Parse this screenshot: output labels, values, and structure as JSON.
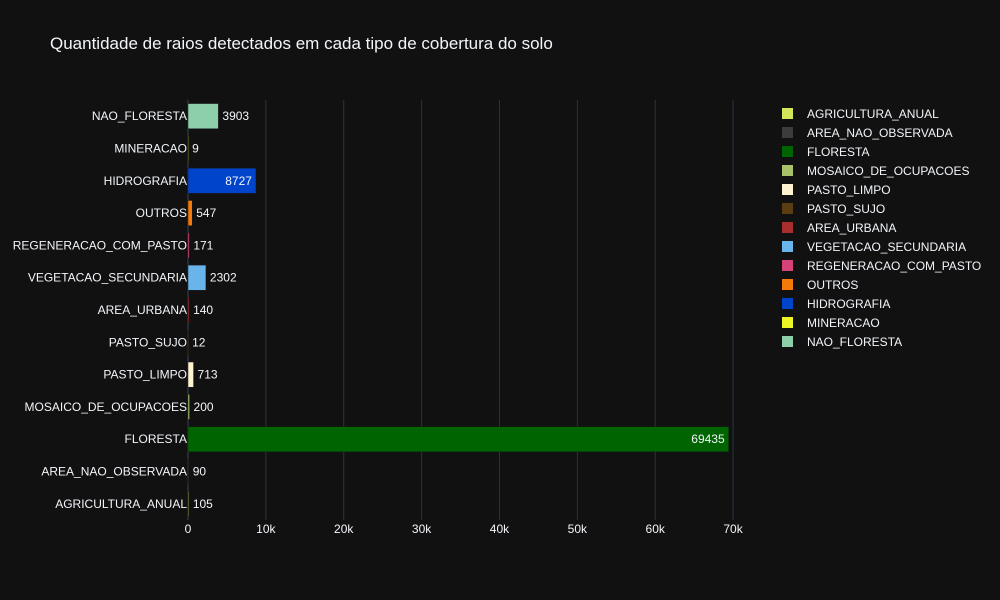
{
  "chart_data": {
    "type": "bar",
    "orientation": "horizontal",
    "title": "Quantidade de raios detectados em cada tipo de cobertura do solo",
    "xlabel": "",
    "ylabel": "",
    "xlim": [
      0,
      75000
    ],
    "x_ticks": [
      0,
      10000,
      20000,
      30000,
      40000,
      50000,
      60000,
      70000
    ],
    "x_tick_labels": [
      "0",
      "10k",
      "20k",
      "30k",
      "40k",
      "50k",
      "60k",
      "70k"
    ],
    "grid": true,
    "legend_position": "right",
    "categories": [
      "AGRICULTURA_ANUAL",
      "AREA_NAO_OBSERVADA",
      "FLORESTA",
      "MOSAICO_DE_OCUPACOES",
      "PASTO_LIMPO",
      "PASTO_SUJO",
      "AREA_URBANA",
      "VEGETACAO_SECUNDARIA",
      "REGENERACAO_COM_PASTO",
      "OUTROS",
      "HIDROGRAFIA",
      "MINERACAO",
      "NAO_FLORESTA"
    ],
    "values": [
      105,
      90,
      69435,
      200,
      713,
      12,
      140,
      2302,
      171,
      547,
      8727,
      9,
      3903
    ],
    "value_labels": [
      "105",
      "90",
      "69435",
      "200",
      "713",
      "12",
      "140",
      "2302",
      "171",
      "547",
      "8727",
      "9",
      "3903"
    ],
    "colors": [
      "#d4e65a",
      "#3c3c3c",
      "#006400",
      "#a8c26a",
      "#fff3d0",
      "#5a3e12",
      "#a92e2e",
      "#6ab4ec",
      "#d6437a",
      "#f57a0a",
      "#0044cc",
      "#eef526",
      "#8ccfaa"
    ]
  }
}
